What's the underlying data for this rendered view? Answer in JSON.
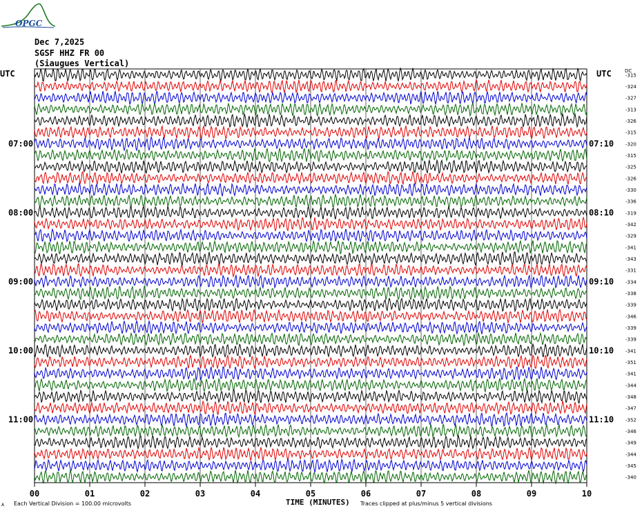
{
  "header": {
    "date": "Dec 7,2025",
    "station": "SGSF HHZ FR 00",
    "location": "(Siaugues Vertical)",
    "logo_text": "OPGC"
  },
  "labels": {
    "utc_left": "UTC",
    "utc_right": "UTC",
    "dc_header": "DC",
    "x_title": "TIME (MINUTES)",
    "footer_left": "Each Vertical Division =  100.00 microvolts",
    "footer_right": "Traces clipped at plus/minus 5 vertical divisions",
    "corner_mark": "A"
  },
  "colors": {
    "trace_cycle": [
      "#000000",
      "#e00000",
      "#0000d0",
      "#006400"
    ],
    "grid": "#000000"
  },
  "chart_data": {
    "type": "line",
    "title": "",
    "xlabel": "TIME (MINUTES)",
    "ylabel": "",
    "x_ticks": [
      "00",
      "01",
      "02",
      "03",
      "04",
      "05",
      "06",
      "07",
      "08",
      "09",
      "10"
    ],
    "xlim": [
      0,
      10
    ],
    "row_count": 36,
    "minutes_per_row": 10,
    "left_hour_labels": [
      {
        "row": 6,
        "label": "07:00"
      },
      {
        "row": 12,
        "label": "08:00"
      },
      {
        "row": 18,
        "label": "09:00"
      },
      {
        "row": 24,
        "label": "10:00"
      },
      {
        "row": 30,
        "label": "11:00"
      }
    ],
    "right_hour_labels": [
      {
        "row": 6,
        "label": "07:10"
      },
      {
        "row": 12,
        "label": "08:10"
      },
      {
        "row": 18,
        "label": "09:10"
      },
      {
        "row": 24,
        "label": "10:10"
      },
      {
        "row": 30,
        "label": "11:10"
      }
    ],
    "dc_offsets": [
      "-315",
      "-324",
      "-327",
      "-313",
      "-326",
      "-315",
      "-320",
      "-315",
      "-325",
      "-326",
      "-330",
      "-336",
      "-319",
      "-342",
      "-329",
      "-341",
      "-343",
      "-331",
      "-334",
      "-338",
      "-339",
      "-346",
      "-339",
      "-339",
      "-341",
      "-351",
      "-341",
      "-344",
      "-348",
      "-347",
      "-352",
      "-346",
      "-349",
      "-344",
      "-345",
      "-340"
    ],
    "trace_amplitude": 0.5,
    "clip_divisions": 5,
    "grid": true
  }
}
